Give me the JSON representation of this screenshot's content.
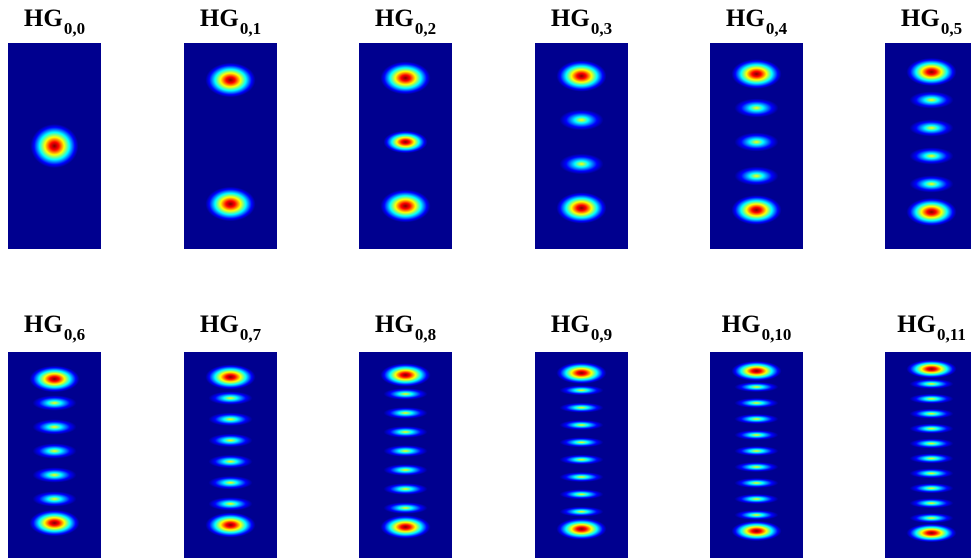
{
  "figure": {
    "colormap": [
      "#00007f",
      "#0000ff",
      "#00ffff",
      "#ffff00",
      "#ff0000",
      "#7f0000"
    ],
    "background_color": "#00008f",
    "panels": [
      {
        "base": "HG",
        "sub": "0,0",
        "order": 0
      },
      {
        "base": "HG",
        "sub": "0,1",
        "order": 1
      },
      {
        "base": "HG",
        "sub": "0,2",
        "order": 2
      },
      {
        "base": "HG",
        "sub": "0,3",
        "order": 3
      },
      {
        "base": "HG",
        "sub": "0,4",
        "order": 4
      },
      {
        "base": "HG",
        "sub": "0,5",
        "order": 5
      },
      {
        "base": "HG",
        "sub": "0,6",
        "order": 6
      },
      {
        "base": "HG",
        "sub": "0,7",
        "order": 7
      },
      {
        "base": "HG",
        "sub": "0,8",
        "order": 8
      },
      {
        "base": "HG",
        "sub": "0,9",
        "order": 9
      },
      {
        "base": "HG",
        "sub": "0,10",
        "order": 10
      },
      {
        "base": "HG",
        "sub": "0,11",
        "order": 11
      }
    ]
  }
}
